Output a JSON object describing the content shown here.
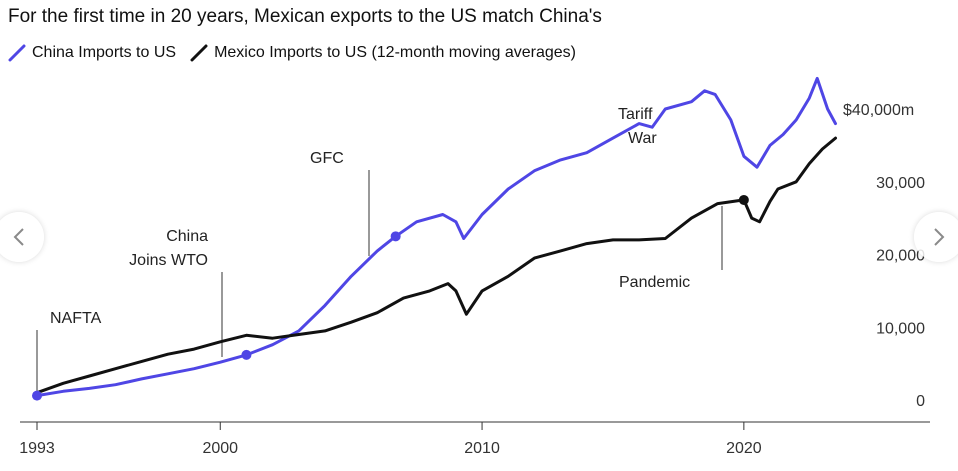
{
  "chart_data": {
    "type": "line",
    "title": "For the first time in 20 years, Mexican exports to the US match China's",
    "xlabel": "",
    "ylabel": "",
    "x_ticks": [
      "1993",
      "2000",
      "2010",
      "2020"
    ],
    "y_ticks": [
      "0",
      "10,000",
      "20,000",
      "30,000",
      "$40,000m"
    ],
    "ylim": [
      0,
      44000
    ],
    "xlim": [
      1993,
      2023.5
    ],
    "grid": false,
    "legend_position": "top-left",
    "series": [
      {
        "name": "China Imports to US",
        "color": "#4f46e5",
        "x": [
          1993,
          1994,
          1995,
          1996,
          1997,
          1998,
          1999,
          2000,
          2001,
          2002,
          2003,
          2004,
          2005,
          2006,
          2006.7,
          2007.5,
          2008.5,
          2009.0,
          2009.3,
          2010,
          2011,
          2012,
          2013,
          2014,
          2015,
          2016,
          2016.5,
          2017,
          2018,
          2018.5,
          2018.9,
          2019.5,
          2020.0,
          2020.5,
          2021.0,
          2021.5,
          2022.0,
          2022.5,
          2022.8,
          2023.2,
          2023.5
        ],
        "y": [
          600,
          1200,
          1600,
          2100,
          2900,
          3600,
          4300,
          5200,
          6200,
          7600,
          9500,
          13000,
          17000,
          20500,
          22500,
          24500,
          25500,
          24500,
          22200,
          25500,
          29000,
          31500,
          33000,
          34000,
          36000,
          38000,
          37500,
          40000,
          41000,
          42500,
          42000,
          38500,
          33500,
          32000,
          35000,
          36500,
          38500,
          41500,
          44200,
          40000,
          38000
        ]
      },
      {
        "name": "Mexico Imports to US (12-month moving averages)",
        "color": "#111111",
        "x": [
          1993,
          1994,
          1995,
          1996,
          1997,
          1998,
          1999,
          2000,
          2001,
          2002,
          2003,
          2004,
          2005,
          2006,
          2007,
          2008,
          2008.7,
          2009.0,
          2009.4,
          2010,
          2011,
          2012,
          2013,
          2014,
          2015,
          2016,
          2017,
          2018,
          2019,
          2019.6,
          2020.0,
          2020.3,
          2020.6,
          2021.0,
          2021.3,
          2022,
          2022.5,
          2023.0,
          2023.5
        ],
        "y": [
          1000,
          2300,
          3300,
          4300,
          5300,
          6300,
          7000,
          8000,
          8900,
          8500,
          9000,
          9500,
          10700,
          12000,
          14000,
          15000,
          16000,
          15000,
          11800,
          15000,
          17000,
          19500,
          20500,
          21500,
          22000,
          22000,
          22200,
          25000,
          27000,
          27300,
          27500,
          25000,
          24500,
          27300,
          29000,
          30000,
          32500,
          34500,
          36000
        ]
      }
    ],
    "annotations": [
      {
        "text": "NAFTA",
        "x": 1994.0
      },
      {
        "text": "China",
        "line2": "Joins WTO",
        "x": 2001.0
      },
      {
        "text": "GFC",
        "x": 2006.7
      },
      {
        "text": "Tariff",
        "line2": "War",
        "x": 2018.0
      },
      {
        "text": "Pandemic",
        "x": 2020.1
      }
    ]
  },
  "nav": {
    "prev_icon": "chevron-left-icon",
    "next_icon": "chevron-right-icon"
  }
}
